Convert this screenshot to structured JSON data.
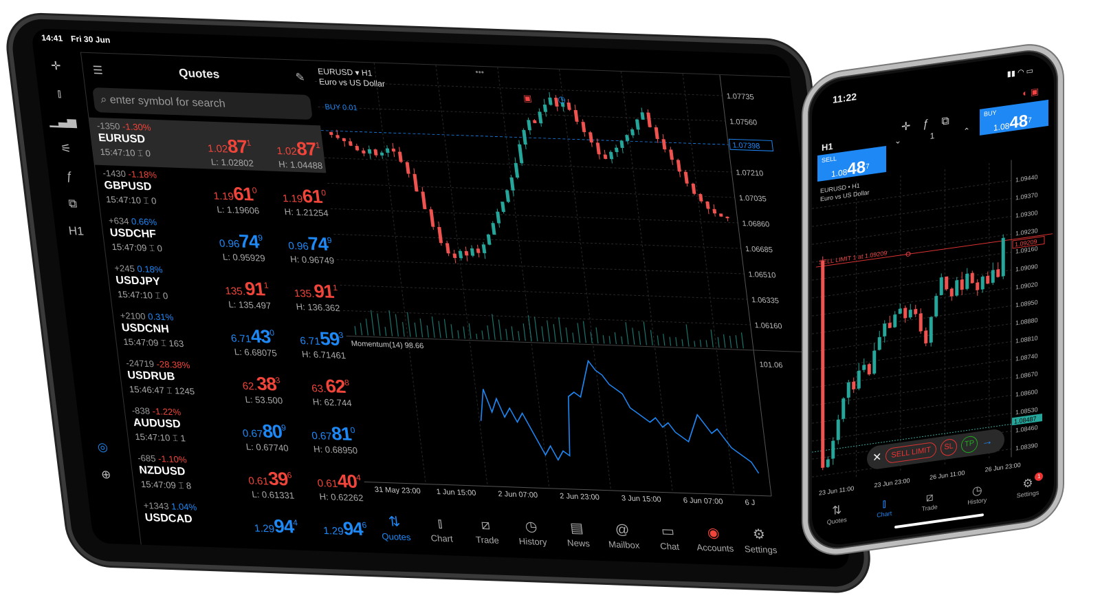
{
  "ipad": {
    "status": {
      "time": "14:41",
      "date": "Fri 30 Jun"
    },
    "toolbar": [
      {
        "icon": "crosshair-icon",
        "glyph": "✛"
      },
      {
        "icon": "candlestick-icon",
        "glyph": "⫾"
      },
      {
        "icon": "volume-icon",
        "glyph": "▁▃▅"
      },
      {
        "icon": "indicators-icon",
        "glyph": "⚟"
      },
      {
        "icon": "function-icon",
        "glyph": "ƒ"
      },
      {
        "icon": "objects-icon",
        "glyph": "⧉"
      },
      {
        "icon": "timeframe-icon",
        "glyph": "H1"
      }
    ],
    "toolbar_bottom": [
      {
        "icon": "chart-search-icon",
        "glyph": "◎"
      },
      {
        "icon": "add-window-icon",
        "glyph": "⊕"
      }
    ],
    "quotes": {
      "title": "Quotes",
      "search_placeholder": "enter symbol for search",
      "rows": [
        {
          "symbol": "EURUSD",
          "points": "-1350",
          "pct": "-1.30%",
          "time": "15:47:10",
          "spread": "0",
          "dir": "red",
          "bid": [
            "1.02",
            "87",
            "1"
          ],
          "ask": [
            "1.02",
            "87",
            "1"
          ],
          "low": "L: 1.02802",
          "high": "H: 1.04488"
        },
        {
          "symbol": "GBPUSD",
          "points": "-1430",
          "pct": "-1.18%",
          "time": "15:47:10",
          "spread": "0",
          "dir": "red",
          "bid": [
            "1.19",
            "61",
            "0"
          ],
          "ask": [
            "1.19",
            "61",
            "0"
          ],
          "low": "L: 1.19606",
          "high": "H: 1.21254"
        },
        {
          "symbol": "USDCHF",
          "points": "+634",
          "pct": "0.66%",
          "time": "15:47:09",
          "spread": "0",
          "dir": "blue",
          "bid": [
            "0.96",
            "74",
            "9"
          ],
          "ask": [
            "0.96",
            "74",
            "9"
          ],
          "low": "L: 0.95929",
          "high": "H: 0.96749"
        },
        {
          "symbol": "USDJPY",
          "points": "+245",
          "pct": "0.18%",
          "time": "15:47:10",
          "spread": "0",
          "dir": "red",
          "pctdir": "blue",
          "bid": [
            "135.",
            "91",
            "1"
          ],
          "ask": [
            "135.",
            "91",
            "1"
          ],
          "low": "L: 135.497",
          "high": "H: 136.362"
        },
        {
          "symbol": "USDCNH",
          "points": "+2100",
          "pct": "0.31%",
          "time": "15:47:09",
          "spread": "163",
          "dir": "blue",
          "bid": [
            "6.71",
            "43",
            "0"
          ],
          "ask": [
            "6.71",
            "59",
            "3"
          ],
          "low": "L: 6.68075",
          "high": "H: 6.71461"
        },
        {
          "symbol": "USDRUB",
          "points": "-24719",
          "pct": "-28.38%",
          "time": "15:46:47",
          "spread": "1245",
          "dir": "red",
          "bid": [
            "62.",
            "38",
            "3"
          ],
          "ask": [
            "63.",
            "62",
            "8"
          ],
          "low": "L: 53.500",
          "high": "H: 62.744"
        },
        {
          "symbol": "AUDUSD",
          "points": "-838",
          "pct": "-1.22%",
          "time": "15:47:10",
          "spread": "1",
          "dir": "blue",
          "pctdir": "red",
          "bid": [
            "0.67",
            "80",
            "9"
          ],
          "ask": [
            "0.67",
            "81",
            "0"
          ],
          "low": "L: 0.67740",
          "high": "H: 0.68950"
        },
        {
          "symbol": "NZDUSD",
          "points": "-685",
          "pct": "-1.10%",
          "time": "15:47:09",
          "spread": "8",
          "dir": "red",
          "bid": [
            "0.61",
            "39",
            "6"
          ],
          "ask": [
            "0.61",
            "40",
            "4"
          ],
          "low": "L: 0.61331",
          "high": "H: 0.62262"
        },
        {
          "symbol": "USDCAD",
          "points": "+1343",
          "pct": "1.04%",
          "time": "",
          "spread": "",
          "dir": "blue",
          "bid": [
            "1.29",
            "94",
            "4"
          ],
          "ask": [
            "1.29",
            "94",
            "6"
          ],
          "low": "",
          "high": ""
        }
      ]
    },
    "chart": {
      "symbol_line": "EURUSD ▾ H1",
      "description": "Euro vs US Dollar",
      "buy_label": "BUY 0.01",
      "current_price": "1.07398",
      "current_value": 1.07398,
      "price_ticks": [
        "1.07735",
        "1.07560",
        "1.07210",
        "1.07035",
        "1.06860",
        "1.06685",
        "1.06510",
        "1.06335",
        "1.06160"
      ],
      "indicator_label": "Momentum(14) 98.66",
      "indicator_tick": "101.06",
      "time_labels": [
        "31 May 23:00",
        "1 Jun 15:00",
        "2 Jun 07:00",
        "2 Jun 23:00",
        "3 Jun 15:00",
        "6 Jun 07:00",
        "6 J"
      ],
      "closes": [
        1.0737,
        1.0735,
        1.0733,
        1.073,
        1.0727,
        1.0725,
        1.0728,
        1.0724,
        1.0726,
        1.0729,
        1.0727,
        1.072,
        1.0712,
        1.07,
        1.0688,
        1.0676,
        1.0665,
        1.0658,
        1.0655,
        1.066,
        1.0657,
        1.0662,
        1.0659,
        1.0665,
        1.0672,
        1.068,
        1.0688,
        1.0695,
        1.0703,
        1.0712,
        1.0722,
        1.0735,
        1.0745,
        1.0752,
        1.075,
        1.0758,
        1.0763,
        1.0768,
        1.0762,
        1.0765,
        1.076,
        1.0752,
        1.0745,
        1.0738,
        1.073,
        1.0727,
        1.0732,
        1.0735,
        1.074,
        1.0744,
        1.0748,
        1.0755,
        1.076,
        1.075,
        1.0742,
        1.0735,
        1.0728,
        1.072,
        1.0712,
        1.0705,
        1.07,
        1.0695,
        1.0692,
        1.069,
        1.0689
      ],
      "momentum": [
        99.6,
        100.3,
        99.8,
        100.1,
        99.7,
        99.9,
        99.6,
        99.8,
        99.5,
        99.2,
        98.9,
        99.1,
        98.8,
        99.0,
        98.9,
        100.2,
        100.3,
        100.2,
        100.6,
        101.0,
        100.8,
        100.7,
        100.5,
        100.4,
        100.3,
        100.0,
        99.9,
        99.8,
        99.7,
        99.8,
        99.6,
        99.7,
        99.5,
        99.4,
        99.3,
        99.6,
        99.9,
        99.7,
        99.5,
        99.6,
        99.4,
        99.2,
        99.1,
        99.0,
        98.9,
        98.66
      ]
    },
    "tabs": [
      {
        "label": "Quotes",
        "icon": "quotes-icon",
        "glyph": "⇅",
        "active": true
      },
      {
        "label": "Chart",
        "icon": "candlestick-icon",
        "glyph": "⫾"
      },
      {
        "label": "Trade",
        "icon": "trade-icon",
        "glyph": "⧄"
      },
      {
        "label": "History",
        "icon": "history-icon",
        "glyph": "◷"
      },
      {
        "label": "News",
        "icon": "news-icon",
        "glyph": "▤"
      },
      {
        "label": "Mailbox",
        "icon": "mailbox-icon",
        "glyph": "@"
      },
      {
        "label": "Chat",
        "icon": "chat-icon",
        "glyph": "▭"
      },
      {
        "label": "Accounts",
        "icon": "accounts-icon",
        "glyph": "◉",
        "color": "#f0453a"
      },
      {
        "label": "Settings",
        "icon": "settings-icon",
        "glyph": "⚙"
      }
    ]
  },
  "phone": {
    "status_time": "11:22",
    "timeframe": "H1",
    "sell": {
      "label": "SELL",
      "prefix": "1.08",
      "big": "48",
      "sup": "7"
    },
    "buy": {
      "label": "BUY",
      "prefix": "1.08",
      "big": "48",
      "sup": "7"
    },
    "volume": "1",
    "symbol_line": "EURUSD • H1",
    "description": "Euro vs US Dollar",
    "order_line": "SELL LIMIT 1 at 1.09209",
    "order_price": "1.09209",
    "order_value": 1.09209,
    "current_price": "1.08487",
    "current_value": 1.08487,
    "price_ticks": [
      "1.09440",
      "1.09370",
      "1.09300",
      "1.09230",
      "1.09160",
      "1.09090",
      "1.09020",
      "1.08950",
      "1.08880",
      "1.08810",
      "1.08740",
      "1.08670",
      "1.08600",
      "1.08530",
      "1.08460",
      "1.08390"
    ],
    "time_labels": [
      "23 Jun 11:00",
      "23 Jun 23:00",
      "26 Jun 11:00",
      "26 Jun 23:00"
    ],
    "open": 1.0923,
    "closes": [
      1.0842,
      1.0845,
      1.0852,
      1.086,
      1.0868,
      1.0874,
      1.0871,
      1.0878,
      1.088,
      1.0876,
      1.0885,
      1.089,
      1.0895,
      1.0893,
      1.0898,
      1.09,
      1.0896,
      1.0899,
      1.0897,
      1.089,
      1.0885,
      1.0895,
      1.0903,
      1.091,
      1.0905,
      1.0902,
      1.0908,
      1.0904,
      1.091,
      1.0906,
      1.0903,
      1.0908,
      1.0905,
      1.091,
      1.0907,
      1.0922
    ],
    "pill": {
      "close": "✕",
      "order_type": "SELL LIMIT",
      "sl": "SL",
      "tp": "TP",
      "arrow": "→"
    },
    "tabs": [
      {
        "label": "Quotes",
        "glyph": "⇅"
      },
      {
        "label": "Chart",
        "glyph": "⫾",
        "active": true
      },
      {
        "label": "Trade",
        "glyph": "⧄"
      },
      {
        "label": "History",
        "glyph": "◷"
      },
      {
        "label": "Settings",
        "glyph": "⚙",
        "badge": "1"
      }
    ]
  },
  "colors": {
    "up": "#26a69a",
    "down": "#ef5350",
    "accent": "#1e88f5",
    "grid": "#2a2a2a"
  }
}
